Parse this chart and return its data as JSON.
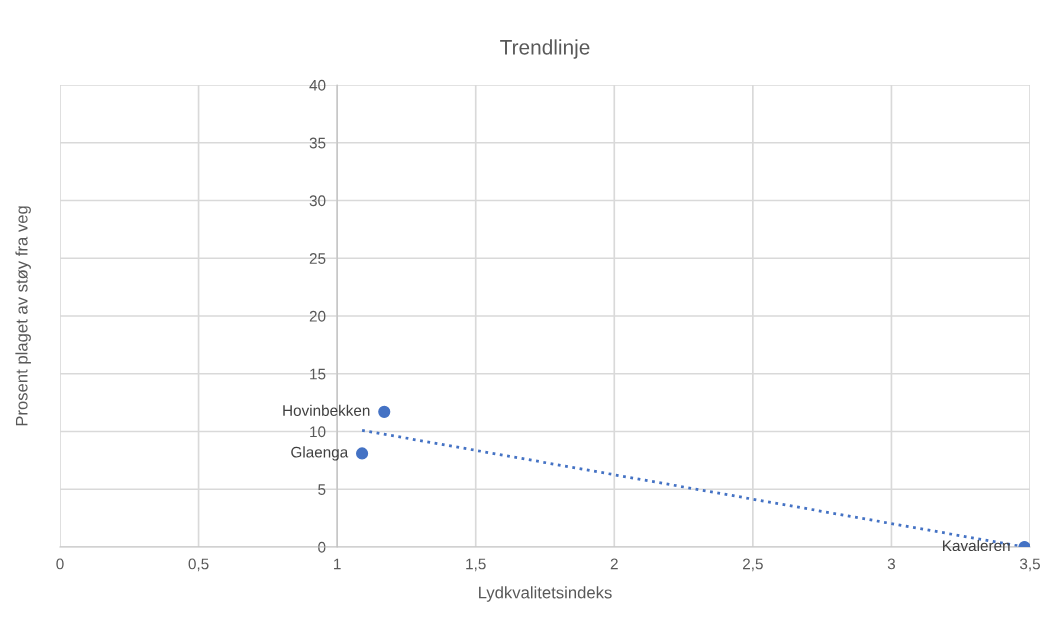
{
  "chart_data": {
    "type": "scatter",
    "title": "Trendlinje",
    "xlabel": "Lydkvalitetsindeks",
    "ylabel": "Prosent plaget av støy fra veg",
    "series": [
      {
        "color": "#4472c4",
        "marker": "circle",
        "x": [
          1.09,
          1.17,
          3.48
        ],
        "values": [
          8.1,
          11.7,
          0
        ]
      },
      {
        "type": "line",
        "color": "#4472c4",
        "line_style": "dotted",
        "x": [
          1.09,
          3.48
        ],
        "values": [
          10.1,
          0
        ]
      }
    ],
    "annotations": [
      {
        "text": "Glaenga",
        "x": 1.09,
        "y": 8.1
      },
      {
        "text": "Hovinbekken",
        "x": 1.17,
        "y": 11.7
      },
      {
        "text": "Kavaleren",
        "x": 3.48,
        "y": 0
      }
    ],
    "xlim": [
      0,
      3.5
    ],
    "xticks": [
      0,
      {
        "value": 0.5,
        "label": "0,5"
      },
      1,
      {
        "value": 1.5,
        "label": "1,5"
      },
      2,
      {
        "value": 2.5,
        "label": "2,5"
      },
      3,
      {
        "value": 3.5,
        "label": "3,5"
      }
    ],
    "ylim": [
      0,
      40
    ],
    "yticks": [
      0,
      5,
      10,
      15,
      20,
      25,
      30,
      35,
      40
    ],
    "grid": true
  }
}
